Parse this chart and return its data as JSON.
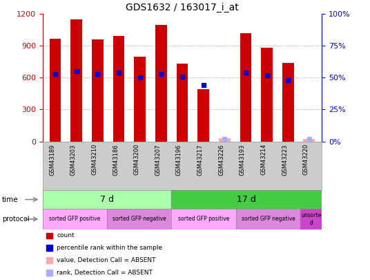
{
  "title": "GDS1632 / 163017_i_at",
  "samples": [
    "GSM43189",
    "GSM43203",
    "GSM43210",
    "GSM43186",
    "GSM43200",
    "GSM43207",
    "GSM43196",
    "GSM43217",
    "GSM43226",
    "GSM43193",
    "GSM43214",
    "GSM43223",
    "GSM43220"
  ],
  "counts": [
    970,
    1150,
    960,
    990,
    800,
    1100,
    730,
    490,
    30,
    1020,
    880,
    740,
    25
  ],
  "absent_counts": [
    0,
    0,
    0,
    0,
    0,
    0,
    0,
    0,
    30,
    0,
    0,
    0,
    25
  ],
  "percentile_ranks": [
    53,
    55,
    53,
    54,
    50,
    53,
    51,
    44,
    2,
    54,
    52,
    48,
    2
  ],
  "absent_ranks": [
    0,
    0,
    0,
    0,
    0,
    0,
    0,
    0,
    2,
    0,
    0,
    0,
    2
  ],
  "ylim_left": [
    0,
    1200
  ],
  "ylim_right": [
    0,
    100
  ],
  "left_ticks": [
    0,
    300,
    600,
    900,
    1200
  ],
  "right_ticks": [
    0,
    25,
    50,
    75,
    100
  ],
  "bar_color": "#cc0000",
  "absent_bar_color": "#ffaaaa",
  "rank_color": "#0000cc",
  "absent_rank_color": "#aaaaff",
  "grid_color": "#888888",
  "left_axis_color": "#cc0000",
  "right_axis_color": "#0000cc",
  "bg_color": "#ffffff",
  "sample_bg_color": "#cccccc",
  "time_groups": [
    {
      "label": "7 d",
      "start": 0,
      "end": 6,
      "color": "#aaffaa"
    },
    {
      "label": "17 d",
      "start": 6,
      "end": 13,
      "color": "#44cc44"
    }
  ],
  "protocol_groups": [
    {
      "label": "sorted GFP positive",
      "start": 0,
      "end": 3,
      "color": "#ffaaff"
    },
    {
      "label": "sorted GFP negative",
      "start": 3,
      "end": 6,
      "color": "#dd88dd"
    },
    {
      "label": "sorted GFP positive",
      "start": 6,
      "end": 9,
      "color": "#ffaaff"
    },
    {
      "label": "sorted GFP negative",
      "start": 9,
      "end": 12,
      "color": "#dd88dd"
    },
    {
      "label": "unsorte\nd",
      "start": 12,
      "end": 13,
      "color": "#cc44cc"
    }
  ],
  "legend_items": [
    {
      "label": "count",
      "color": "#cc0000"
    },
    {
      "label": "percentile rank within the sample",
      "color": "#0000cc"
    },
    {
      "label": "value, Detection Call = ABSENT",
      "color": "#ffaaaa"
    },
    {
      "label": "rank, Detection Call = ABSENT",
      "color": "#aaaaff"
    }
  ]
}
